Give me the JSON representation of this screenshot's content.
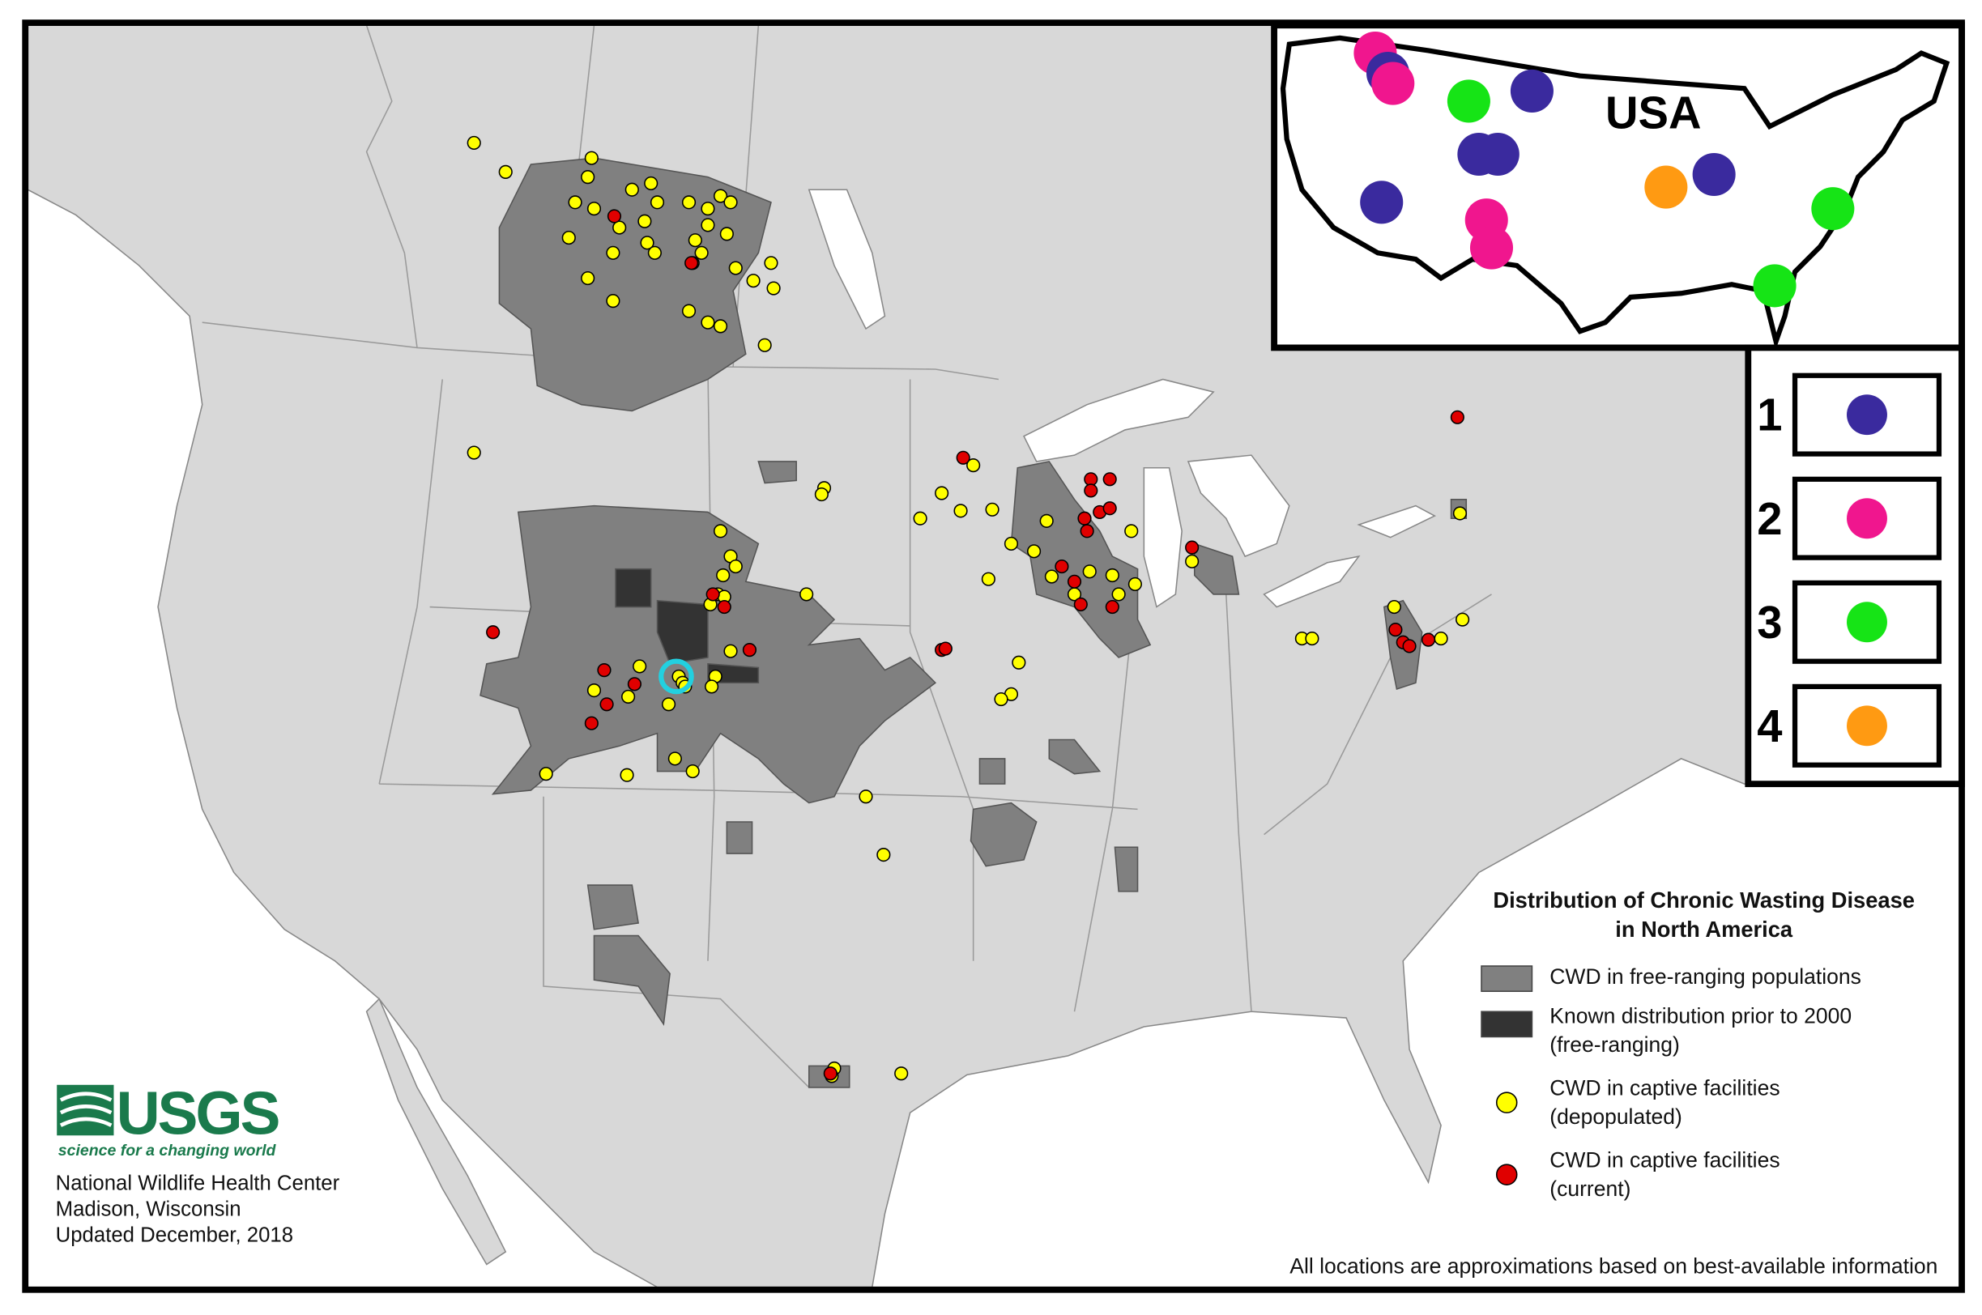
{
  "map": {
    "title_lines": [
      "Distribution of Chronic Wasting Disease",
      "in North America"
    ],
    "legend": [
      {
        "lines": [
          "CWD in free-ranging populations"
        ],
        "color": "#808080"
      },
      {
        "lines": [
          "Known distribution prior to 2000",
          "(free-ranging)"
        ],
        "color": "#333333"
      },
      {
        "lines": [
          "CWD in captive facilities",
          "(depopulated)"
        ],
        "color": "#ffff00"
      },
      {
        "lines": [
          "CWD in captive facilities",
          "(current)"
        ],
        "color": "#e00000"
      }
    ],
    "logo": {
      "name": "USGS",
      "tagline": "science for a changing world",
      "color": "#1a7a4c"
    },
    "credits": [
      "National Wildlife Health Center",
      "Madison, Wisconsin",
      "Updated December, 2018"
    ],
    "note": "All locations are approximations based on best-available information",
    "inset": {
      "label": "USA",
      "key": [
        {
          "label": "1",
          "color": "#3a2a9e"
        },
        {
          "label": "2",
          "color": "#f0168e"
        },
        {
          "label": "3",
          "color": "#16e416"
        },
        {
          "label": "4",
          "color": "#ff9a12"
        }
      ]
    }
  }
}
